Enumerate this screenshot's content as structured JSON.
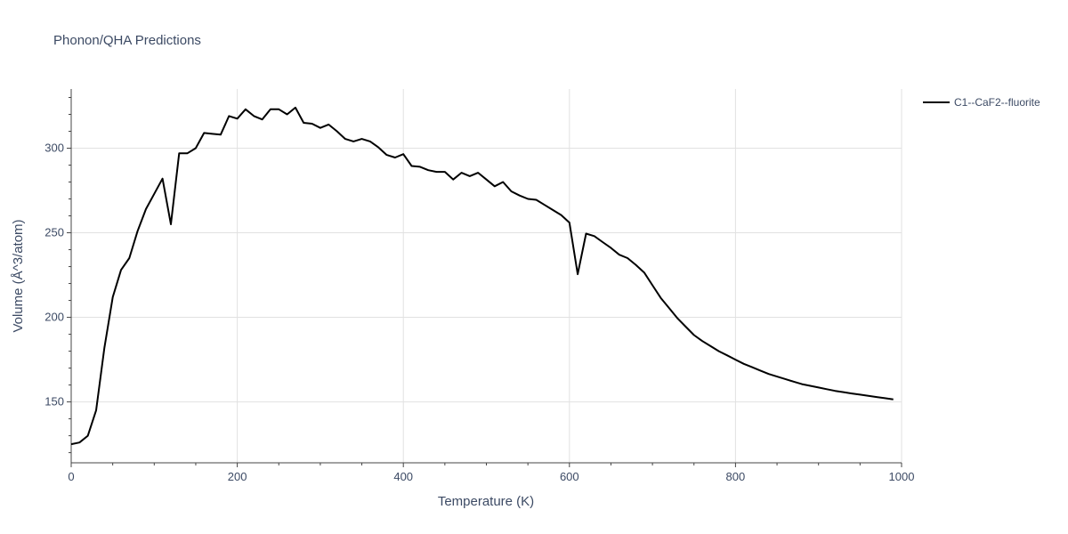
{
  "chart_data": {
    "type": "line",
    "title": "Phonon/QHA Predictions",
    "xlabel": "Temperature (K)",
    "ylabel": "Volume (Å^3/atom)",
    "xlim": [
      0,
      1000
    ],
    "ylim": [
      114,
      335
    ],
    "grid": true,
    "legend_position": "top-right-outside",
    "x_ticks": [
      {
        "value": 0,
        "label": "0"
      },
      {
        "value": 200,
        "label": "200"
      },
      {
        "value": 400,
        "label": "400"
      },
      {
        "value": 600,
        "label": "600"
      },
      {
        "value": 800,
        "label": "800"
      },
      {
        "value": 1000,
        "label": "1000"
      }
    ],
    "y_ticks": [
      {
        "value": 150,
        "label": "150"
      },
      {
        "value": 200,
        "label": "200"
      },
      {
        "value": 250,
        "label": "250"
      },
      {
        "value": 300,
        "label": "300"
      }
    ],
    "series": [
      {
        "name": "C1--CaF2--fluorite",
        "color": "#000000",
        "x": [
          0,
          10,
          20,
          30,
          40,
          50,
          60,
          70,
          80,
          90,
          100,
          110,
          120,
          130,
          140,
          150,
          160,
          170,
          180,
          190,
          200,
          210,
          220,
          230,
          240,
          250,
          260,
          270,
          280,
          290,
          300,
          310,
          320,
          330,
          340,
          350,
          360,
          370,
          380,
          390,
          400,
          410,
          420,
          430,
          440,
          450,
          460,
          470,
          480,
          490,
          500,
          510,
          520,
          530,
          540,
          550,
          560,
          570,
          580,
          590,
          600,
          610,
          620,
          630,
          640,
          650,
          660,
          670,
          680,
          690,
          700,
          710,
          720,
          730,
          740,
          750,
          760,
          770,
          780,
          790,
          800,
          810,
          820,
          830,
          840,
          850,
          860,
          870,
          880,
          890,
          900,
          910,
          920,
          930,
          940,
          950,
          960,
          970,
          980,
          990
        ],
        "y": [
          125,
          126,
          130,
          145,
          182,
          212,
          228,
          235,
          251,
          264,
          273,
          282,
          255,
          297,
          297,
          300,
          309,
          308.5,
          308,
          319,
          317.5,
          323,
          319,
          317,
          323,
          323,
          320,
          324,
          315,
          314.5,
          312,
          314,
          310,
          305.5,
          304,
          305.5,
          304,
          300.5,
          296,
          294.5,
          296.5,
          289.5,
          289,
          287,
          286,
          286,
          281.5,
          285.5,
          283.5,
          285.5,
          281.5,
          277.5,
          280,
          274.5,
          272,
          270,
          269.5,
          266.5,
          263.5,
          260.5,
          256,
          225.5,
          249.5,
          248,
          244.5,
          241,
          237,
          235,
          231,
          226.5,
          219,
          211.5,
          205.5,
          199.5,
          194.5,
          189.5,
          186,
          183,
          180,
          177.5,
          175,
          172.5,
          170.5,
          168.5,
          166.5,
          165,
          163.5,
          162,
          160.5,
          159.5,
          158.5,
          157.5,
          156.5,
          155.8,
          155,
          154.3,
          153.6,
          152.9,
          152.2,
          151.5
        ]
      }
    ]
  }
}
